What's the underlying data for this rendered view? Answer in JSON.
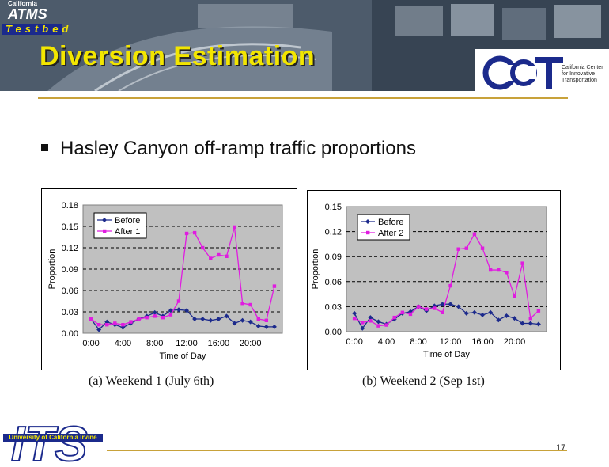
{
  "header": {
    "title": "Diversion Estimation",
    "ca_label": "California",
    "atms_label": "ATMS",
    "testbed_label": "Testbed",
    "cct_lines": [
      "California Center",
      "for Innovative",
      "Transportation"
    ]
  },
  "bullet": {
    "text": "Hasley Canyon off-ramp traffic proportions"
  },
  "footer": {
    "page_number": "17",
    "its_label": "ITS",
    "uc_label": "University of California Irvine"
  },
  "colors": {
    "before": "#1c2a8c",
    "after": "#e01ce0",
    "plot_bg": "#c0c0c0",
    "title": "#f3e600",
    "rule": "#c8a23a"
  },
  "chart_data": [
    {
      "type": "line",
      "caption": "(a) Weekend 1 (July 6th)",
      "ylabel": "Proportion",
      "xlabel": "Time of Day",
      "ylim": [
        0,
        0.18
      ],
      "yticks": [
        "0.00",
        "0.03",
        "0.06",
        "0.09",
        "0.12",
        "0.15",
        "0.18"
      ],
      "yticks_values": [
        0,
        0.03,
        0.06,
        0.09,
        0.12,
        0.15,
        0.18
      ],
      "xlim": [
        -1,
        24
      ],
      "xticks": [
        "0:00",
        "4:00",
        "8:00",
        "12:00",
        "16:00",
        "20:00"
      ],
      "xticks_values": [
        0,
        4,
        8,
        12,
        16,
        20
      ],
      "grid": "horizontal dashed",
      "legend_position": "top-left",
      "series": [
        {
          "name": "Before",
          "x": [
            0,
            1,
            2,
            3,
            4,
            5,
            6,
            7,
            8,
            9,
            10,
            11,
            12,
            13,
            14,
            15,
            16,
            17,
            18,
            19,
            20,
            21,
            22,
            23
          ],
          "values": [
            0.02,
            0.005,
            0.016,
            0.012,
            0.008,
            0.014,
            0.02,
            0.024,
            0.029,
            0.024,
            0.032,
            0.033,
            0.032,
            0.02,
            0.02,
            0.018,
            0.02,
            0.024,
            0.014,
            0.018,
            0.016,
            0.01,
            0.009,
            0.009
          ]
        },
        {
          "name": "After 1",
          "x": [
            0,
            1,
            2,
            3,
            4,
            5,
            6,
            7,
            8,
            9,
            10,
            11,
            12,
            13,
            14,
            15,
            16,
            17,
            18,
            19,
            20,
            21,
            22,
            23
          ],
          "values": [
            0.02,
            0.012,
            0.012,
            0.014,
            0.012,
            0.016,
            0.02,
            0.022,
            0.024,
            0.022,
            0.026,
            0.045,
            0.14,
            0.141,
            0.12,
            0.105,
            0.11,
            0.108,
            0.149,
            0.042,
            0.04,
            0.02,
            0.018,
            0.066
          ]
        }
      ]
    },
    {
      "type": "line",
      "caption": "(b) Weekend 2 (Sep 1st)",
      "ylabel": "Proportion",
      "xlabel": "Time of Day",
      "ylim": [
        0,
        0.15
      ],
      "yticks": [
        "0.00",
        "0.03",
        "0.06",
        "0.09",
        "0.12",
        "0.15"
      ],
      "yticks_values": [
        0,
        0.03,
        0.06,
        0.09,
        0.12,
        0.15
      ],
      "xlim": [
        -1,
        24
      ],
      "xticks": [
        "0:00",
        "4:00",
        "8:00",
        "12:00",
        "16:00",
        "20:00"
      ],
      "xticks_values": [
        0,
        4,
        8,
        12,
        16,
        20
      ],
      "grid": "horizontal dashed",
      "legend_position": "top-left",
      "series": [
        {
          "name": "Before",
          "x": [
            0,
            1,
            2,
            3,
            4,
            5,
            6,
            7,
            8,
            9,
            10,
            11,
            12,
            13,
            14,
            15,
            16,
            17,
            18,
            19,
            20,
            21,
            22,
            23
          ],
          "values": [
            0.022,
            0.004,
            0.017,
            0.012,
            0.009,
            0.015,
            0.022,
            0.024,
            0.03,
            0.025,
            0.031,
            0.033,
            0.033,
            0.03,
            0.022,
            0.023,
            0.02,
            0.023,
            0.014,
            0.019,
            0.016,
            0.01,
            0.01,
            0.009
          ]
        },
        {
          "name": "After 2",
          "x": [
            0,
            1,
            2,
            3,
            4,
            5,
            6,
            7,
            8,
            9,
            10,
            11,
            12,
            13,
            14,
            15,
            16,
            17,
            18,
            19,
            20,
            21,
            22,
            23
          ],
          "values": [
            0.016,
            0.011,
            0.013,
            0.007,
            0.008,
            0.017,
            0.023,
            0.021,
            0.03,
            0.027,
            0.028,
            0.023,
            0.055,
            0.099,
            0.1,
            0.117,
            0.1,
            0.074,
            0.074,
            0.071,
            0.042,
            0.082,
            0.016,
            0.025
          ]
        }
      ]
    }
  ]
}
